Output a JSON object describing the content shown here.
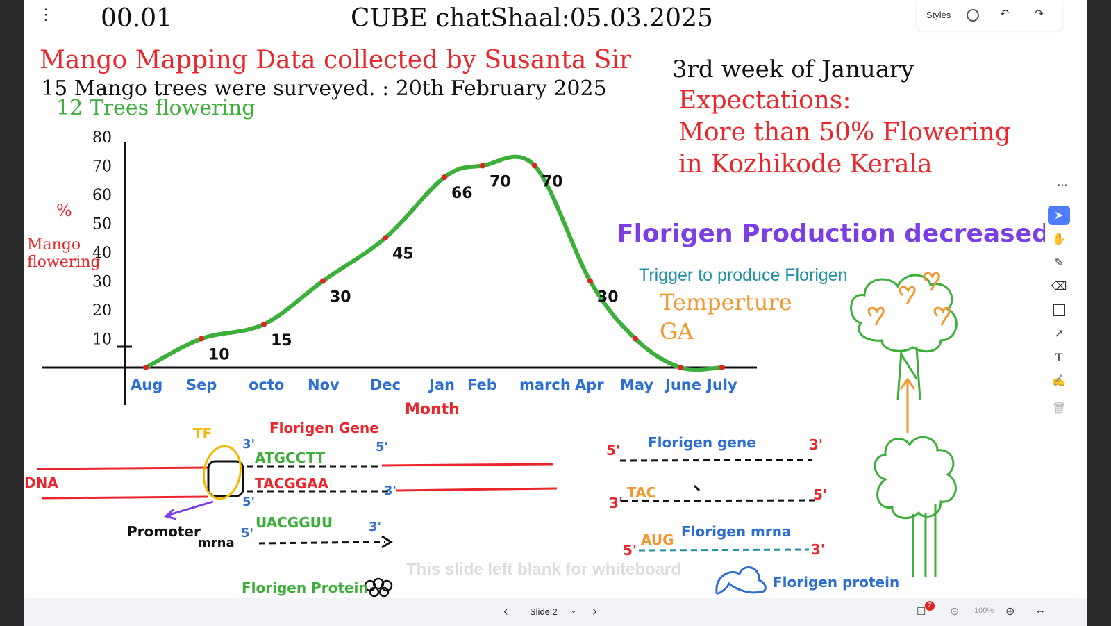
{
  "header": {
    "time": "00.01",
    "title": "CUBE chatShaal:05.03.2025"
  },
  "heading": {
    "line1": "Mango Mapping Data collected by Susanta Sir",
    "line2": "15 Mango trees were surveyed. : 20th February 2025",
    "line3": "12 Trees flowering"
  },
  "expectations": {
    "week": "3rd week of January",
    "label": "Expectations:",
    "line1": "More than 50% Flowering",
    "line2": "in Kozhikode Kerala"
  },
  "florigen": {
    "title": "Florigen Production decreased",
    "trigger": "Trigger to produce Florigen",
    "factor1": "Temperture",
    "factor2": "GA"
  },
  "chart_data": {
    "type": "line",
    "categories": [
      "Aug",
      "Sep",
      "octo",
      "Nov",
      "Dec",
      "Jan",
      "Feb",
      "march",
      "Apr",
      "May",
      "June",
      "July"
    ],
    "values": [
      0,
      10,
      15,
      30,
      45,
      66,
      70,
      70,
      30,
      10,
      0,
      0
    ],
    "data_labels": [
      "",
      "10",
      "15",
      "30",
      "45",
      "66",
      "70",
      "70",
      "30",
      "",
      "",
      ""
    ],
    "yticks": [
      "80",
      "70",
      "60",
      "50",
      "40",
      "30",
      "20",
      "10"
    ],
    "ylabel_symbol": "%",
    "ylabel_line1": "Mango",
    "ylabel_line2": "flowering",
    "xlabel": "Month",
    "ylim": [
      0,
      80
    ],
    "line_color": "#3cae3a",
    "point_color": "#e02424"
  },
  "dna_diagram": {
    "tf": "TF",
    "gene_label": "Florigen Gene",
    "dna": "DNA",
    "top_strand": "ATGCCTT",
    "bottom_strand": "TACGGAA",
    "mrna_seq": "UACGGUU",
    "promoter": "Promoter",
    "mrna": "mrna",
    "protein": "Florigen Protein",
    "three_prime": "3'",
    "five_prime": "5'"
  },
  "right_diagram": {
    "gene": "Florigen gene",
    "tac": "TAC",
    "aug": "AUG",
    "mrna": "Florigen mrna",
    "protein": "Florigen protein",
    "three_prime": "3'",
    "five_prime": "5'"
  },
  "watermark": "This slide left blank for whiteboard",
  "top_right": {
    "styles_label": "Styles"
  },
  "footer": {
    "slide_label": "Slide 2",
    "zoom": "100%",
    "badge": "2"
  },
  "colors": {
    "red": "#e8262b",
    "green": "#3cae3a",
    "blue": "#2d6fd1",
    "purple": "#7b3fe4",
    "orange": "#f0972e",
    "teal": "#1e8fa5"
  }
}
